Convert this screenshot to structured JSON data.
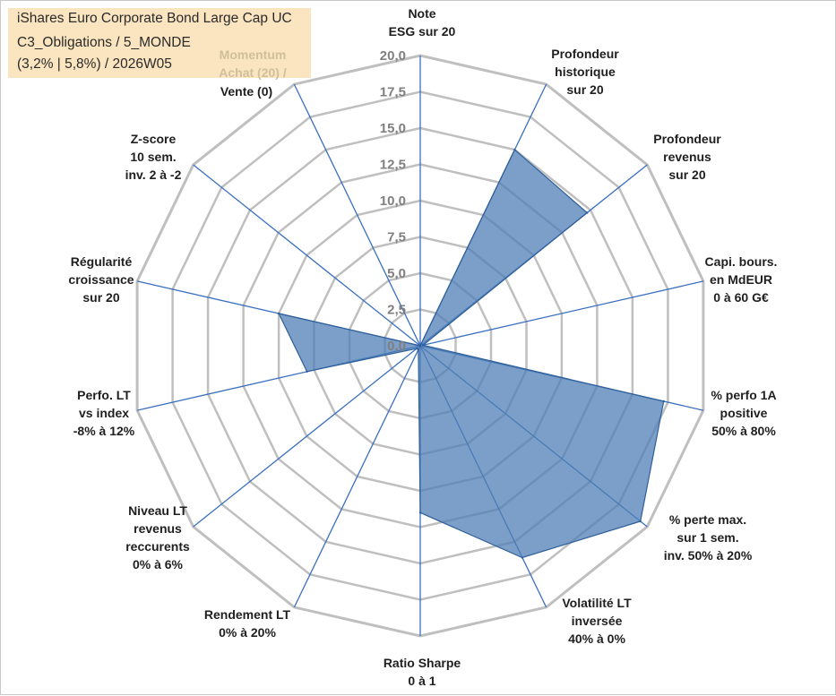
{
  "chart_data": {
    "type": "radar",
    "title_lines": [
      "iShares Euro Corporate Bond Large Cap UC",
      "C3_Obligations / 5_MONDE",
      "(3,2% | 5,8%) / 2026W05"
    ],
    "rmin": 0,
    "rmax": 20,
    "ticks": [
      "0,0",
      "2,5",
      "5,0",
      "7,5",
      "10,0",
      "12,5",
      "15,0",
      "17,5",
      "20,0"
    ],
    "axes": [
      {
        "label": [
          "Note",
          "ESG sur 20"
        ],
        "value": 0
      },
      {
        "label": [
          "Profondeur",
          "historique",
          "sur 20"
        ],
        "value": 15.0
      },
      {
        "label": [
          "Profondeur",
          "revenus",
          "sur 20"
        ],
        "value": 14.7
      },
      {
        "label": [
          "Capi. bours.",
          "en MdEUR",
          "0 à 60 G€"
        ],
        "value": 0.2
      },
      {
        "label": [
          "% perfo 1A",
          "positive",
          "50% à 80%"
        ],
        "value": 17.2
      },
      {
        "label": [
          "% perte max.",
          "sur 1 sem.",
          "inv. 50% à 20%"
        ],
        "value": 19.4
      },
      {
        "label": [
          "Volatilité LT",
          "inversée",
          "40% à 0%"
        ],
        "value": 16.2
      },
      {
        "label": [
          "Ratio Sharpe",
          "0 à 1"
        ],
        "value": 11.5
      },
      {
        "label": [
          "Rendement LT",
          "0% à 20%"
        ],
        "value": 0.3
      },
      {
        "label": [
          "Niveau LT",
          "revenus",
          "reccurents",
          "0% à 6%"
        ],
        "value": 0.3
      },
      {
        "label": [
          "Perfo. LT",
          "vs index",
          "-8% à 12%"
        ],
        "value": 8.0
      },
      {
        "label": [
          "Régularité",
          "croissance",
          "sur 20"
        ],
        "value": 10.0
      },
      {
        "label": [
          "Z-score",
          "10 sem.",
          "inv. 2 à -2"
        ],
        "value": 0
      },
      {
        "label": [
          "Momentum",
          "Achat (20) /",
          "Vente (0)"
        ],
        "value": 0
      }
    ],
    "series": [
      {
        "name": "iShares Euro Corporate Bond Large Cap UC",
        "color": "#4f7fb5"
      }
    ],
    "grid_color": "#bfbfbf",
    "spoke_color": "#3a6fc0"
  }
}
